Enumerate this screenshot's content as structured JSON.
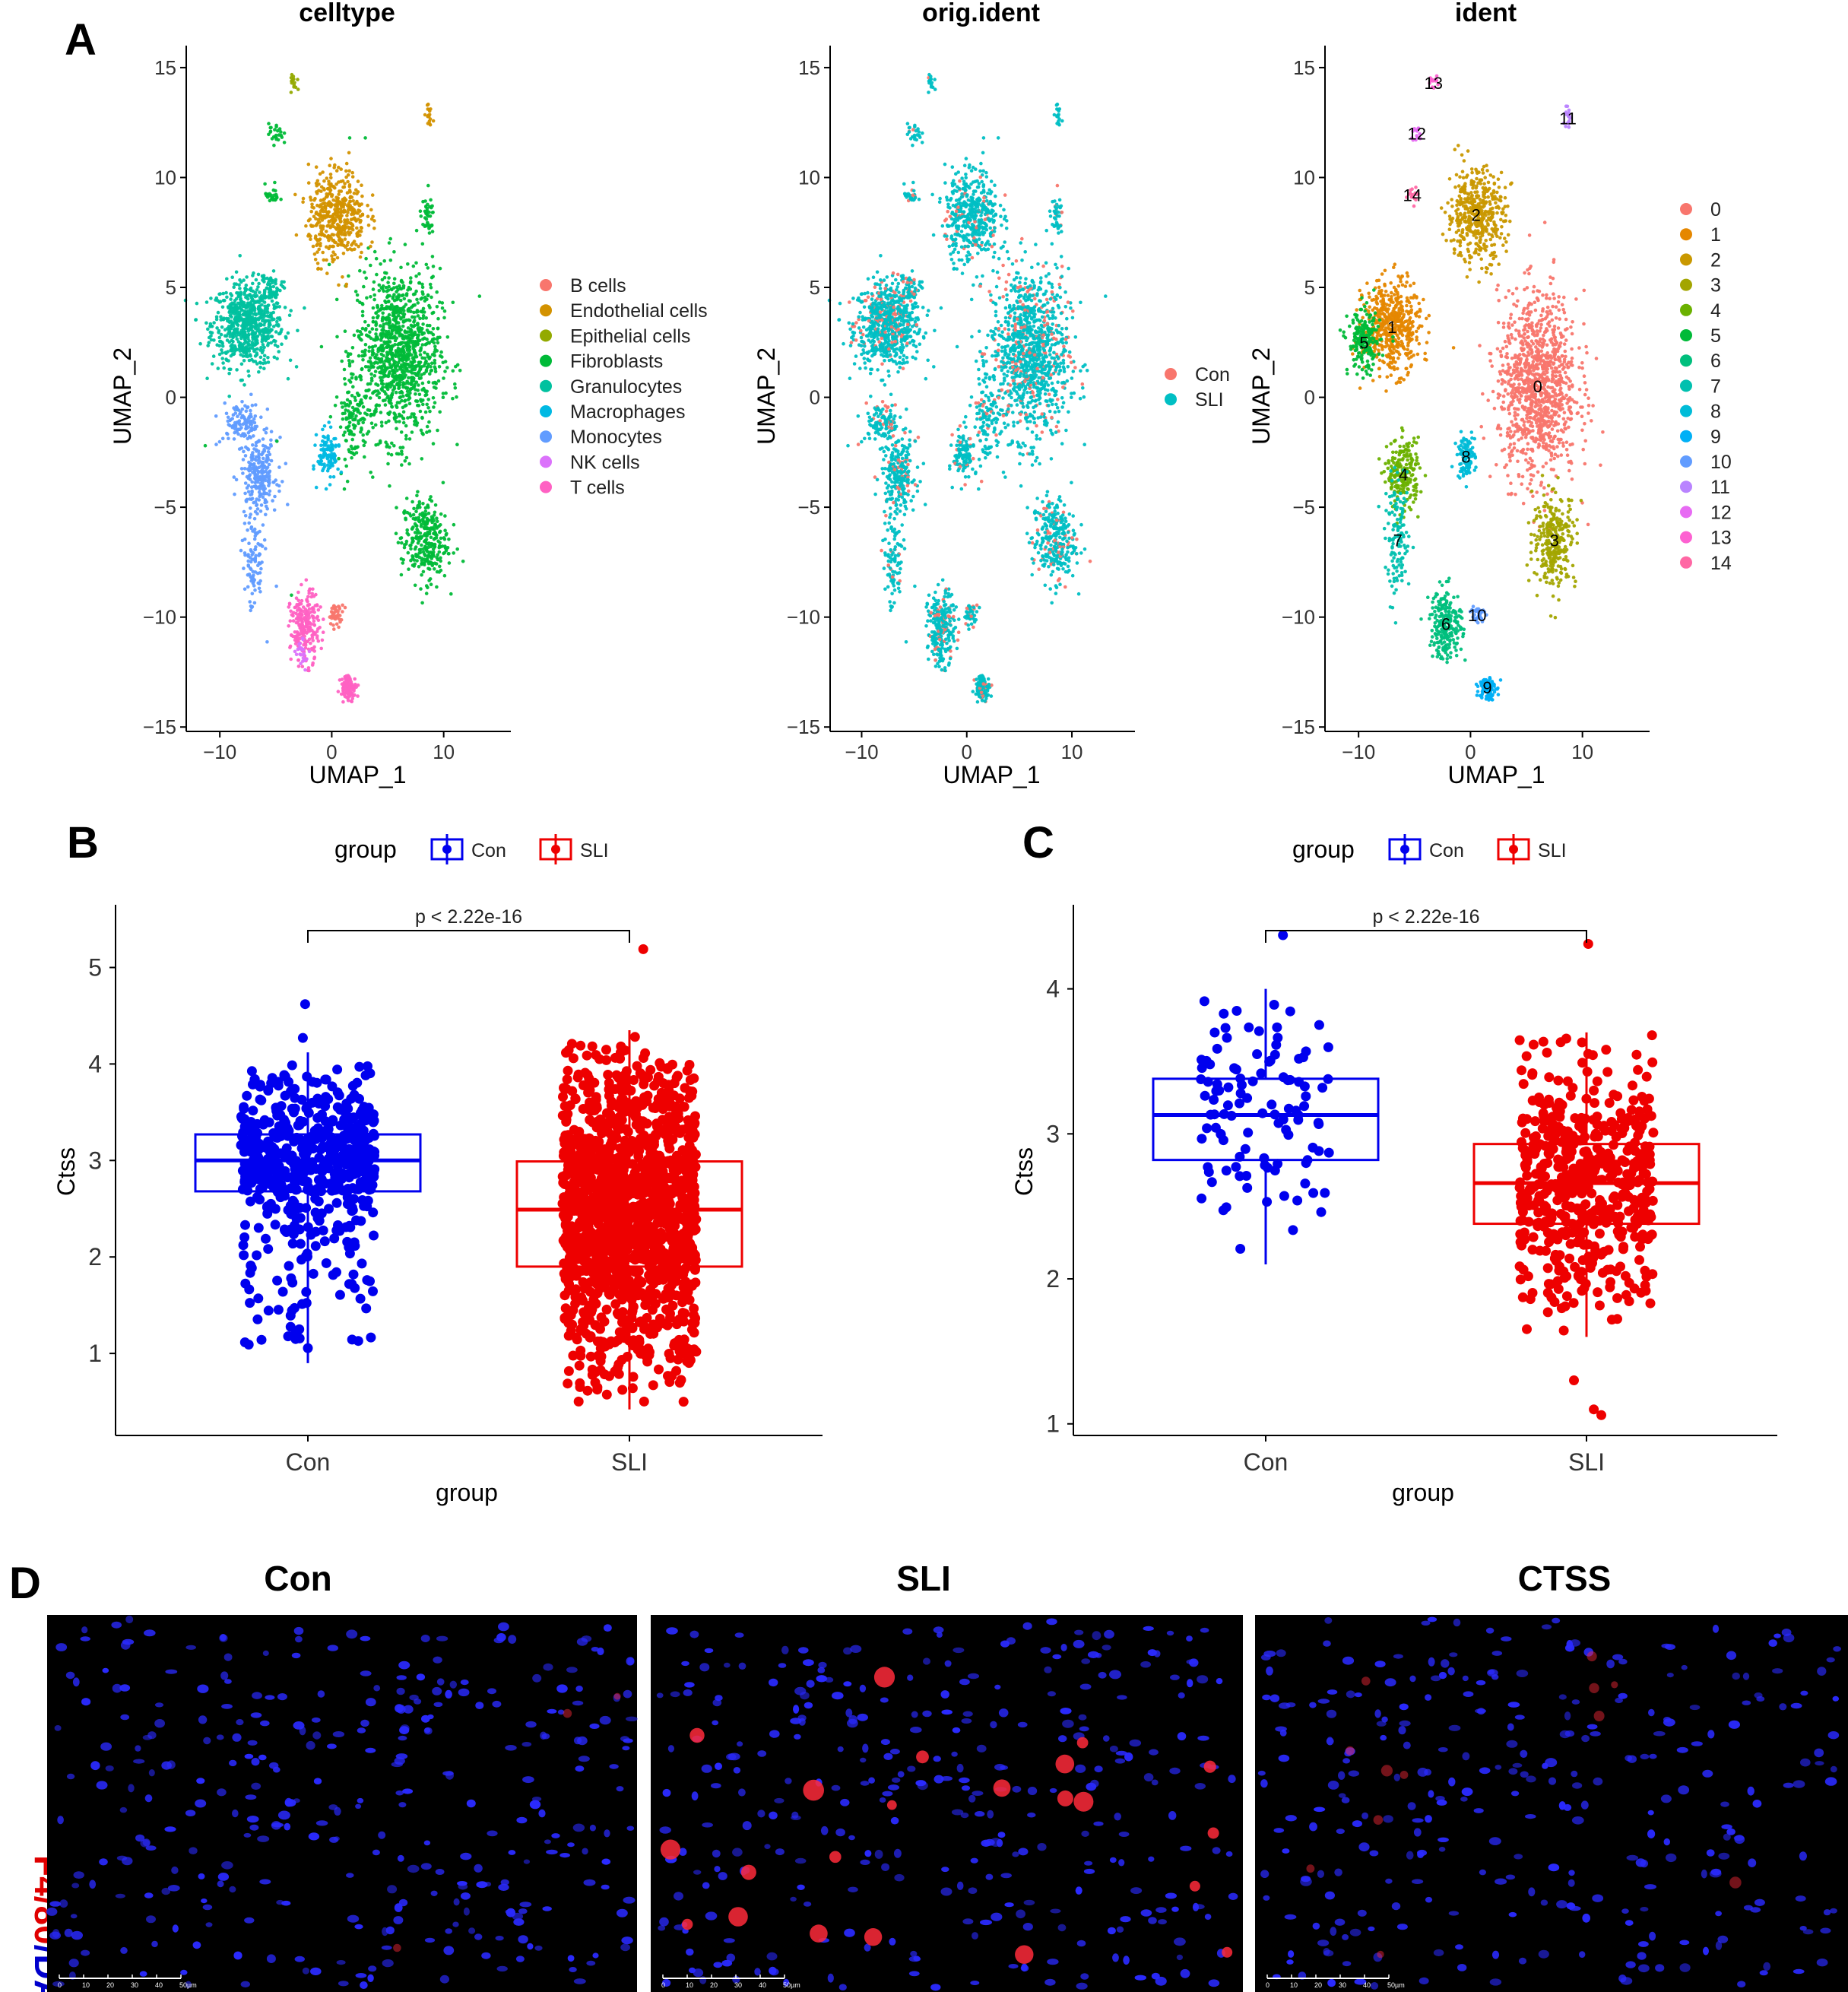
{
  "panels": {
    "A": "A",
    "B": "B",
    "C": "C",
    "D": "D"
  },
  "colors": {
    "con": "#0000ee",
    "sli": "#ee0000",
    "nucleus": "#2a2aff",
    "f480": "#ff2a3a",
    "con_orig": "#f8766d",
    "sli_orig": "#00bfc4"
  },
  "chart_data": [
    {
      "type": "scatter",
      "panel": "A",
      "title": "celltype",
      "xlabel": "UMAP_1",
      "ylabel": "UMAP_2",
      "xlim": [
        -13,
        16
      ],
      "ylim": [
        -15.2,
        16
      ],
      "xticks": [
        -10,
        0,
        10
      ],
      "yticks": [
        15,
        10,
        5,
        0,
        -5,
        -10,
        -15
      ],
      "legend_title": "",
      "legend": [
        {
          "label": "B cells",
          "color": "#F8766D"
        },
        {
          "label": "Endothelial cells",
          "color": "#D39200"
        },
        {
          "label": "Epithelial cells",
          "color": "#93AA00"
        },
        {
          "label": "Fibroblasts",
          "color": "#00BA38"
        },
        {
          "label": "Granulocytes",
          "color": "#00C19F"
        },
        {
          "label": "Macrophages",
          "color": "#00B9E3"
        },
        {
          "label": "Monocytes",
          "color": "#619CFF"
        },
        {
          "label": "NK cells",
          "color": "#DB72FB"
        },
        {
          "label": "T cells",
          "color": "#FF61C3"
        }
      ],
      "clusters": [
        {
          "group": "Granulocytes",
          "cx": -7.5,
          "cy": 3.3,
          "sx": 2.0,
          "sy": 1.2,
          "n": 700
        },
        {
          "group": "Granulocytes",
          "cx": -5.5,
          "cy": 5.0,
          "sx": 0.6,
          "sy": 0.4,
          "n": 60
        },
        {
          "group": "Fibroblasts",
          "cx": 6.0,
          "cy": 2.0,
          "sx": 2.3,
          "sy": 2.4,
          "n": 1100
        },
        {
          "group": "Fibroblasts",
          "cx": 1.8,
          "cy": -0.8,
          "sx": 0.8,
          "sy": 1.4,
          "n": 120
        },
        {
          "group": "Fibroblasts",
          "cx": 8.3,
          "cy": -6.5,
          "sx": 1.3,
          "sy": 1.2,
          "n": 300
        },
        {
          "group": "Fibroblasts",
          "cx": 8.5,
          "cy": 8.2,
          "sx": 0.4,
          "sy": 0.5,
          "n": 40
        },
        {
          "group": "Fibroblasts",
          "cx": -5.3,
          "cy": 9.2,
          "sx": 0.4,
          "sy": 0.3,
          "n": 25
        },
        {
          "group": "Fibroblasts",
          "cx": -5.0,
          "cy": 12.0,
          "sx": 0.4,
          "sy": 0.3,
          "n": 25
        },
        {
          "group": "Endothelial cells",
          "cx": 0.5,
          "cy": 8.3,
          "sx": 1.6,
          "sy": 1.3,
          "n": 450
        },
        {
          "group": "Endothelial cells",
          "cx": 8.7,
          "cy": 12.7,
          "sx": 0.3,
          "sy": 0.3,
          "n": 18
        },
        {
          "group": "Epithelial cells",
          "cx": -3.3,
          "cy": 14.3,
          "sx": 0.25,
          "sy": 0.3,
          "n": 15
        },
        {
          "group": "Monocytes",
          "cx": -6.5,
          "cy": -3.5,
          "sx": 1.0,
          "sy": 1.0,
          "n": 230
        },
        {
          "group": "Monocytes",
          "cx": -8.0,
          "cy": -1.2,
          "sx": 1.2,
          "sy": 0.6,
          "n": 110
        },
        {
          "group": "Monocytes",
          "cx": -7.0,
          "cy": -7.5,
          "sx": 0.6,
          "sy": 1.5,
          "n": 100
        },
        {
          "group": "Macrophages",
          "cx": -0.3,
          "cy": -2.6,
          "sx": 0.6,
          "sy": 0.7,
          "n": 110
        },
        {
          "group": "T cells",
          "cx": -2.4,
          "cy": -10.5,
          "sx": 0.8,
          "sy": 1.0,
          "n": 230
        },
        {
          "group": "T cells",
          "cx": 1.5,
          "cy": -13.2,
          "sx": 0.45,
          "sy": 0.35,
          "n": 110
        },
        {
          "group": "B cells",
          "cx": 0.4,
          "cy": -9.9,
          "sx": 0.4,
          "sy": 0.3,
          "n": 40
        },
        {
          "group": "NK cells",
          "cx": -2.6,
          "cy": -11.6,
          "sx": 0.4,
          "sy": 0.4,
          "n": 25
        }
      ]
    },
    {
      "type": "scatter",
      "panel": "A",
      "title": "orig.ident",
      "xlabel": "UMAP_1",
      "ylabel": "UMAP_2",
      "xlim": [
        -13,
        16
      ],
      "ylim": [
        -15.2,
        16
      ],
      "xticks": [
        -10,
        0,
        10
      ],
      "yticks": [
        15,
        10,
        5,
        0,
        -5,
        -10,
        -15
      ],
      "legend": [
        {
          "label": "Con",
          "color": "#F8766D"
        },
        {
          "label": "SLI",
          "color": "#00BFC4"
        }
      ],
      "con_fraction": 0.14
    },
    {
      "type": "scatter",
      "panel": "A",
      "title": "ident",
      "xlabel": "UMAP_1",
      "ylabel": "UMAP_2",
      "xlim": [
        -13,
        16
      ],
      "ylim": [
        -15.2,
        16
      ],
      "xticks": [
        -10,
        0,
        10
      ],
      "yticks": [
        15,
        10,
        5,
        0,
        -5,
        -10,
        -15
      ],
      "legend": [
        {
          "label": "0",
          "color": "#F8766D"
        },
        {
          "label": "1",
          "color": "#E58700"
        },
        {
          "label": "2",
          "color": "#C99800"
        },
        {
          "label": "3",
          "color": "#A3A500"
        },
        {
          "label": "4",
          "color": "#6BB100"
        },
        {
          "label": "5",
          "color": "#00BA38"
        },
        {
          "label": "6",
          "color": "#00BF7D"
        },
        {
          "label": "7",
          "color": "#00C0AF"
        },
        {
          "label": "8",
          "color": "#00BCD8"
        },
        {
          "label": "9",
          "color": "#00B0F6"
        },
        {
          "label": "10",
          "color": "#619CFF"
        },
        {
          "label": "11",
          "color": "#B983FF"
        },
        {
          "label": "12",
          "color": "#E76BF3"
        },
        {
          "label": "13",
          "color": "#FD61D1"
        },
        {
          "label": "14",
          "color": "#FF67A4"
        }
      ],
      "clusters": [
        {
          "id": 0,
          "cx": 6.0,
          "cy": 0.5,
          "sx": 2.2,
          "sy": 2.6,
          "n": 1100
        },
        {
          "id": 1,
          "cx": -7.0,
          "cy": 3.2,
          "sx": 1.6,
          "sy": 1.3,
          "n": 500
        },
        {
          "id": 2,
          "cx": 0.5,
          "cy": 8.3,
          "sx": 1.6,
          "sy": 1.3,
          "n": 450
        },
        {
          "id": 3,
          "cx": 7.5,
          "cy": -6.5,
          "sx": 1.2,
          "sy": 1.3,
          "n": 300
        },
        {
          "id": 4,
          "cx": -6.0,
          "cy": -3.5,
          "sx": 0.9,
          "sy": 1.0,
          "n": 220
        },
        {
          "id": 5,
          "cx": -9.5,
          "cy": 2.5,
          "sx": 0.9,
          "sy": 0.9,
          "n": 200
        },
        {
          "id": 6,
          "cx": -2.2,
          "cy": -10.3,
          "sx": 0.9,
          "sy": 1.0,
          "n": 230
        },
        {
          "id": 7,
          "cx": -6.5,
          "cy": -6.5,
          "sx": 0.7,
          "sy": 1.6,
          "n": 130
        },
        {
          "id": 8,
          "cx": -0.4,
          "cy": -2.7,
          "sx": 0.5,
          "sy": 0.6,
          "n": 110
        },
        {
          "id": 9,
          "cx": 1.5,
          "cy": -13.2,
          "sx": 0.45,
          "sy": 0.35,
          "n": 110
        },
        {
          "id": 10,
          "cx": 0.6,
          "cy": -9.9,
          "sx": 0.4,
          "sy": 0.3,
          "n": 40
        },
        {
          "id": 11,
          "cx": 8.7,
          "cy": 12.7,
          "sx": 0.3,
          "sy": 0.3,
          "n": 18
        },
        {
          "id": 12,
          "cx": -4.8,
          "cy": 12.0,
          "sx": 0.3,
          "sy": 0.25,
          "n": 15
        },
        {
          "id": 13,
          "cx": -3.3,
          "cy": 14.3,
          "sx": 0.25,
          "sy": 0.3,
          "n": 15
        },
        {
          "id": 14,
          "cx": -5.2,
          "cy": 9.2,
          "sx": 0.3,
          "sy": 0.25,
          "n": 15
        }
      ]
    },
    {
      "type": "box",
      "panel": "B",
      "title": "",
      "xlabel": "group",
      "ylabel": "Ctss",
      "categories": [
        "Con",
        "SLI"
      ],
      "ylim": [
        0.15,
        5.65
      ],
      "yticks": [
        1,
        2,
        3,
        4,
        5
      ],
      "legend_title": "group",
      "legend": [
        "Con",
        "SLI"
      ],
      "annotation": "p < 2.22e-16",
      "boxes": [
        {
          "group": "Con",
          "q1": 2.68,
          "median": 3.0,
          "q3": 3.27,
          "whisker_low": 0.9,
          "whisker_high": 4.12,
          "n": 560,
          "outliers": [
            4.62,
            4.27
          ]
        },
        {
          "group": "SLI",
          "q1": 1.9,
          "median": 2.49,
          "q3": 2.99,
          "whisker_low": 0.42,
          "whisker_high": 4.35,
          "n": 1500,
          "outliers": [
            5.19
          ]
        }
      ]
    },
    {
      "type": "box",
      "panel": "C",
      "title": "",
      "xlabel": "group",
      "ylabel": "Ctss",
      "categories": [
        "Con",
        "SLI"
      ],
      "ylim": [
        0.92,
        4.58
      ],
      "yticks": [
        1,
        2,
        3,
        4
      ],
      "legend_title": "group",
      "legend": [
        "Con",
        "SLI"
      ],
      "annotation": "p < 2.22e-16",
      "boxes": [
        {
          "group": "Con",
          "q1": 2.82,
          "median": 3.13,
          "q3": 3.38,
          "whisker_low": 2.1,
          "whisker_high": 4.0,
          "n": 110,
          "outliers": [
            4.37
          ]
        },
        {
          "group": "SLI",
          "q1": 2.38,
          "median": 2.66,
          "q3": 2.93,
          "whisker_low": 1.6,
          "whisker_high": 3.7,
          "n": 520,
          "outliers": [
            4.31,
            1.06,
            1.1,
            1.3
          ]
        }
      ]
    }
  ],
  "micrographs": {
    "stain_label_red": "F4/80",
    "stain_label_blue": "/DAPI",
    "titles": [
      "Con",
      "SLI",
      "CTSS"
    ],
    "red_cell_counts": [
      3,
      22,
      12
    ],
    "scale_labels": [
      "0",
      "10",
      "20",
      "30",
      "40",
      "50µm"
    ]
  }
}
